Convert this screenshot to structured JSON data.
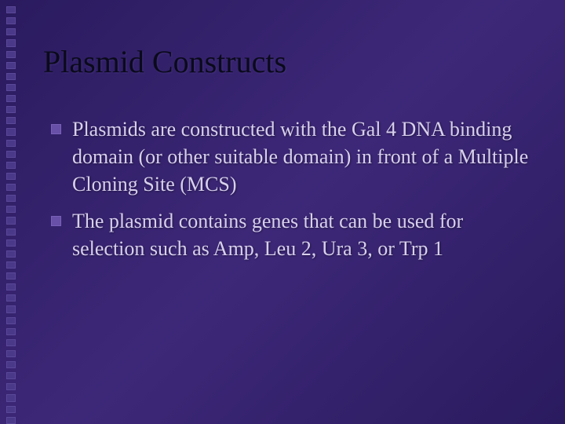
{
  "slide": {
    "title": "Plasmid Constructs",
    "bullets": [
      {
        "text": "Plasmids are constructed with the Gal 4 DNA binding domain (or other suitable domain) in front of a Multiple Cloning Site (MCS)"
      },
      {
        "text": "The plasmid contains genes that can be used for selection such as Amp, Leu 2, Ura 3, or Trp 1"
      }
    ]
  },
  "styling": {
    "background_gradient": [
      "#2a1a5e",
      "#3d2878",
      "#2a1a5e"
    ],
    "title_color": "#0a0a1a",
    "title_fontsize": 40,
    "body_color": "#d8d0ec",
    "body_fontsize": 26,
    "bullet_marker_color": "#6850a8",
    "bullet_marker_size": 13,
    "deco_square_color": "#4a3888",
    "deco_square_count": 38,
    "font_family": "Georgia, Times New Roman, serif",
    "slide_width": 720,
    "slide_height": 540
  }
}
